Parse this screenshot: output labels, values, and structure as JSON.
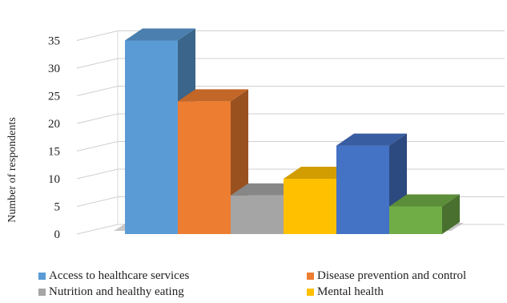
{
  "chart_data": {
    "type": "bar",
    "style": "3d",
    "title": "",
    "xlabel": "",
    "ylabel": "Number of respondents",
    "ylim": [
      0,
      35
    ],
    "yticks": [
      0,
      5,
      10,
      15,
      20,
      25,
      30,
      35
    ],
    "grid": true,
    "legend_placement": "bottom",
    "series": [
      {
        "name": "Access to healthcare services",
        "value": 35,
        "color": "#5B9BD5"
      },
      {
        "name": "Disease prevention and control",
        "value": 24,
        "color": "#ED7D31"
      },
      {
        "name": "Nutrition and healthy eating",
        "value": 7,
        "color": "#A5A5A5"
      },
      {
        "name": "Mental health",
        "value": 10,
        "color": "#FFC000"
      },
      {
        "name": "",
        "value": 16,
        "color": "#4472C4"
      },
      {
        "name": "",
        "value": 5,
        "color": "#70AD47"
      }
    ]
  }
}
